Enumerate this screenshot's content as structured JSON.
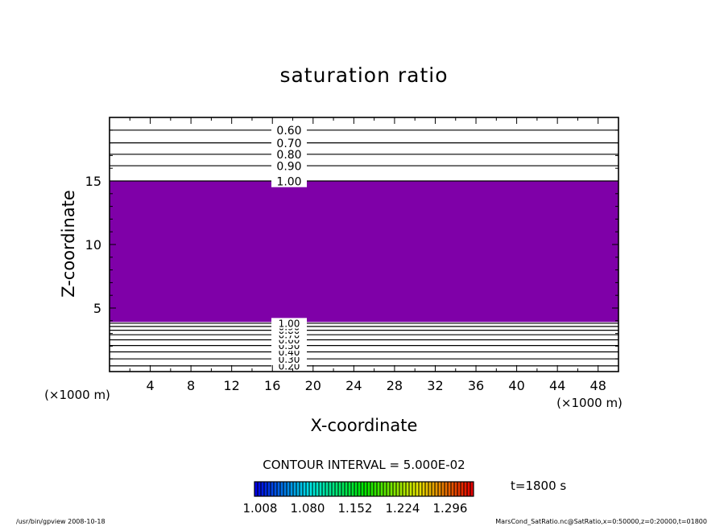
{
  "chart_data": {
    "type": "contour",
    "title": "saturation ratio",
    "xlabel": "X-coordinate",
    "ylabel": "Z-coordinate",
    "x_unit": "(×1000 m)",
    "xlim": [
      0,
      50
    ],
    "ylim": [
      0,
      20
    ],
    "x_ticks": [
      4,
      8,
      12,
      16,
      20,
      24,
      28,
      32,
      36,
      40,
      44,
      48
    ],
    "y_ticks": [
      5,
      10,
      15
    ],
    "shaded_region": {
      "z_min": 3.9,
      "z_max": 15.0,
      "color": "#7f00a8"
    },
    "contours_upper": [
      {
        "z": 15.0,
        "label": "1.00"
      },
      {
        "z": 16.2,
        "label": "0.90"
      },
      {
        "z": 17.1,
        "label": "0.80"
      },
      {
        "z": 18.0,
        "label": "0.70"
      },
      {
        "z": 19.0,
        "label": "0.60"
      }
    ],
    "contours_lower": [
      {
        "z": 0.45,
        "label": "0.20"
      },
      {
        "z": 1.0,
        "label": "0.30"
      },
      {
        "z": 1.55,
        "label": "0.40"
      },
      {
        "z": 2.05,
        "label": "0.50"
      },
      {
        "z": 2.5,
        "label": "0.60"
      },
      {
        "z": 2.9,
        "label": "0.70"
      },
      {
        "z": 3.25,
        "label": "0.80"
      },
      {
        "z": 3.55,
        "label": "0.90"
      },
      {
        "z": 3.8,
        "label": "1.00"
      }
    ],
    "contour_interval_text": "CONTOUR INTERVAL = 5.000E-02",
    "time_label": "t=1800 s",
    "colorbar_ticks": [
      "1.008",
      "1.080",
      "1.152",
      "1.224",
      "1.296"
    ]
  },
  "footer": {
    "left": "/usr/bin/gpview   2008-10-18",
    "right": "MarsCond_SatRatio.nc@SatRatio,x=0:50000,z=0:20000,t=01800"
  }
}
